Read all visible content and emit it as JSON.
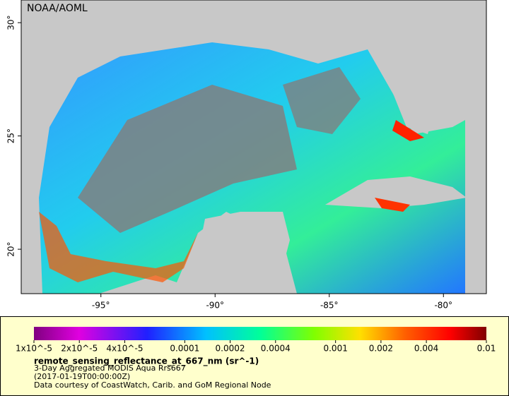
{
  "map": {
    "attribution": "NOAA/AOML",
    "xlim": [
      -98.49,
      -78.12
    ],
    "ylim": [
      18.04,
      31.0
    ],
    "xticks": [
      {
        "value": -95,
        "label": "-95°"
      },
      {
        "value": -90,
        "label": "-90°"
      },
      {
        "value": -85,
        "label": "-85°"
      },
      {
        "value": -80,
        "label": "-80°"
      }
    ],
    "yticks": [
      {
        "value": 30,
        "label": "30°"
      },
      {
        "value": 25,
        "label": "25°"
      },
      {
        "value": 20,
        "label": "20°"
      }
    ]
  },
  "colorbar": {
    "scale": "log",
    "lim": [
      1e-05,
      0.01
    ],
    "ticks": [
      {
        "value": 1e-05,
        "label": "1x10^-5"
      },
      {
        "value": 2e-05,
        "label": "2x10^-5"
      },
      {
        "value": 4e-05,
        "label": "4x10^-5"
      },
      0.0001,
      0.0002,
      0.0004,
      0.001,
      0.002,
      0.004,
      0.01
    ],
    "title": "remote_sensing_reflectance_at_667_nm (sr^-1)",
    "notes": [
      "3-Day Aggregated MODIS Aqua Rrs667",
      "(2017-01-19T00:00:00Z)",
      "Data courtesy of CoastWatch, Carib. and GoM Regional Node"
    ]
  }
}
